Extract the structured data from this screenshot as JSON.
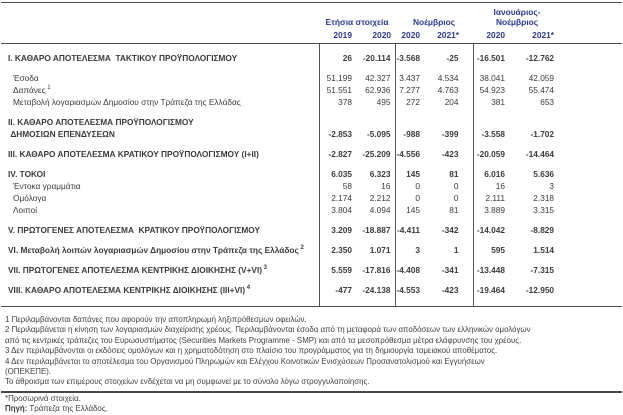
{
  "colors": {
    "accent": "#2b3990",
    "text": "#3a3a3a",
    "line": "#4d4d4d"
  },
  "table": {
    "header": {
      "groups": [
        {
          "label": "Ετήσια στοιχεία"
        },
        {
          "label": "Νοέμβριος"
        },
        {
          "label": "Ιανουάριος-Νοέμβριος"
        }
      ],
      "years": [
        "2019",
        "2020",
        "2020",
        "2021*",
        "2020",
        "2021*"
      ]
    },
    "rows": [
      {
        "label": "I. ΚΑΘΑΡΟ ΑΠΟΤΕΛΕΣΜΑ  ΤΑΚΤΙΚΟΥ ΠΡΟΫΠΟΛΟΓΙΣΜΟΥ",
        "style": "section",
        "gap_before": true,
        "values": [
          "26",
          "-20.114",
          "-3.568",
          "-25",
          "-16.501",
          "-12.762"
        ]
      },
      {
        "label": "Έσοδα",
        "style": "sub",
        "gap_before": true,
        "values": [
          "51.199",
          "42.327",
          "3.437",
          "4.534",
          "38.041",
          "42.059"
        ]
      },
      {
        "label": "Δαπάνες",
        "sup": "1",
        "style": "sub",
        "values": [
          "51.551",
          "62.936",
          "7.277",
          "4.763",
          "54.923",
          "55.474"
        ]
      },
      {
        "label": "Μεταβολή λογαριασμών Δημοσίου στην Τράπεζα της Ελλάδας",
        "style": "sub",
        "values": [
          "378",
          "495",
          "272",
          "204",
          "381",
          "653"
        ]
      },
      {
        "label": "II. ΚΑΘΑΡΟ ΑΠΟΤΕΛΕΣΜΑ ΠΡΟΫΠΟΛΟΓΙΣΜΟΥ\n ΔΗΜΟΣΙΩΝ ΕΠΕΝΔΥΣΕΩΝ",
        "style": "section",
        "gap_before": true,
        "values": [
          "-2.853",
          "-5.095",
          "-988",
          "-399",
          "-3.558",
          "-1.702"
        ]
      },
      {
        "label": "III. ΚΑΘΑΡΟ ΑΠΟΤΕΛΕΣΜΑ ΚΡΑΤΙΚΟΥ ΠΡΟΫΠΟΛΟΓΙΣΜΟΥ (I+II)",
        "style": "section",
        "gap_before": true,
        "values": [
          "-2.827",
          "-25.209",
          "-4.556",
          "-423",
          "-20.059",
          "-14.464"
        ]
      },
      {
        "label": "IV. ΤΟΚΟΙ",
        "style": "section",
        "gap_before": true,
        "values": [
          "6.035",
          "6.323",
          "145",
          "81",
          "6.016",
          "5.636"
        ]
      },
      {
        "label": "Έντοκα γραμμάτια",
        "style": "sub",
        "values": [
          "58",
          "16",
          "0",
          "0",
          "16",
          "3"
        ]
      },
      {
        "label": "Ομόλογα",
        "style": "sub",
        "values": [
          "2.174",
          "2.212",
          "0",
          "0",
          "2.111",
          "2.318"
        ]
      },
      {
        "label": "Λοιποί",
        "style": "sub",
        "values": [
          "3.804",
          "4.094",
          "145",
          "81",
          "3.889",
          "3.315"
        ]
      },
      {
        "label": "V. ΠΡΩΤΟΓΕΝΕΣ ΑΠΟΤΕΛΕΣΜΑ  ΚΡΑΤΙΚΟΥ ΠΡΟΫΠΟΛΟΓΙΣΜΟΥ",
        "style": "section",
        "gap_before": true,
        "values": [
          "3.209",
          "-18.887",
          "-4.411",
          "-342",
          "-14.042",
          "-8.829"
        ]
      },
      {
        "label": "VI. Μεταβολή λοιπών λογαριασμών Δημοσίου στην Τράπεζα της Ελλάδος",
        "sup": "2",
        "style": "section",
        "gap_before": true,
        "values": [
          "2.350",
          "1.071",
          "3",
          "1",
          "595",
          "1.514"
        ]
      },
      {
        "label": "VII. ΠΡΩΤΟΓΕΝΕΣ ΑΠΟΤΕΛΕΣΜΑ ΚΕΝΤΡΙΚΗΣ ΔΙΟΙΚΗΣΗΣ (V+VI)",
        "sup": "3",
        "style": "section",
        "gap_before": true,
        "values": [
          "5.559",
          "-17.816",
          "-4.408",
          "-341",
          "-13.448",
          "-7.315"
        ]
      },
      {
        "label": "VIII. ΚΑΘΑΡΟ ΑΠΟΤΕΛΕΣΜΑ ΚΕΝΤΡΙΚΗΣ ΔΙΟΙΚΗΣΗΣ (III+VI)",
        "sup": "4",
        "style": "section",
        "gap_before": true,
        "values": [
          "-477",
          "-24.138",
          "-4.553",
          "-423",
          "-19.464",
          "-12.950"
        ]
      }
    ]
  },
  "footnotes": [
    "1 Περιλαμβάνονται δαπάνες που αφορούν την αποπληρωμή ληξιπρόθεσμων οφειλών.",
    "2 Περιλαμβάνεται η κίνηση των λογαριασμών διαχείρισης χρέους. Περιλαμβάνονται έσοδα από τη μεταφορά των αποδόσεων των ελληνικών ομολόγων\nαπό τις κεντρικές τράπεζες του Ευρωσυστήματος (Securities Markets Programme - SMP) και από τα μεσοπρόθεσμα μέτρα ελάφρυνσης του χρέους.",
    "3 Δεν περιλαμβάνονται οι εκδόσεις ομολόγων και η χρηματοδότηση στο πλαίσιο του προγράμματος για τη δημιουργία ταμειακού αποθέματος.",
    "4 Δεν περιλαμβάνεται το αποτέλεσμα του Οργανισμού Πληρωμών και Ελέγχου Κοινοτικών Ενισχύσεων Προσανατολισμού και Εγγυήσεων\n(ΟΠΕΚΕΠΕ).",
    "Το άθροισμα των επιμέρους στοιχείων ενδέχεται να μη συμφωνεί με το σύνολο λόγω στρογγυλοποίησης."
  ],
  "footer": {
    "provisional": "*Προσωρινά στοιχεία.",
    "source_label": "Πηγή:",
    "source_text": " Τράπεζα της Ελλάδος."
  }
}
